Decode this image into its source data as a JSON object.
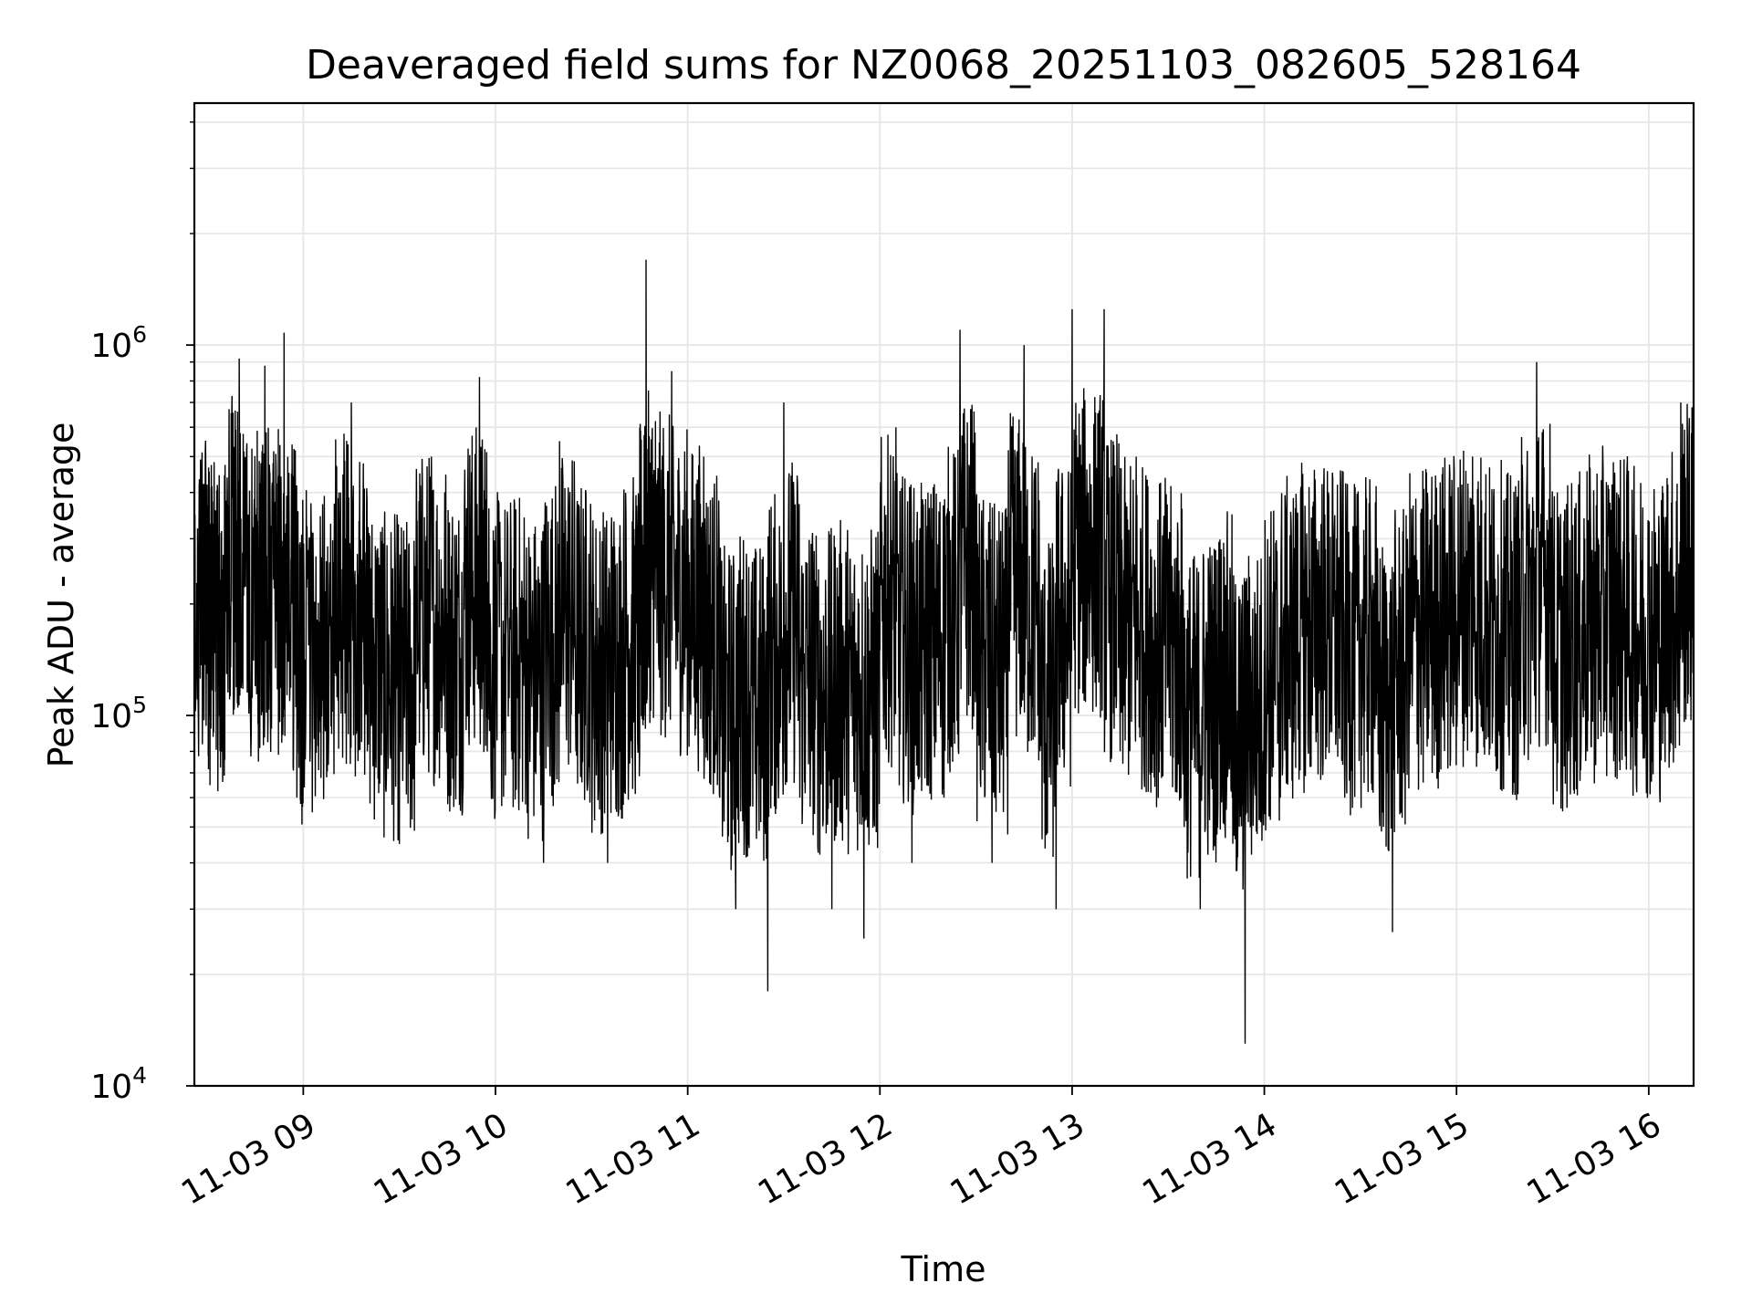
{
  "chart_data": {
    "type": "line",
    "title": "Deaveraged field sums for NZ0068_20251103_082605_528164",
    "xlabel": "Time",
    "ylabel": "Peak ADU - average",
    "yscale": "log",
    "ylim": [
      10000,
      4500000
    ],
    "xlim": [
      "2025-11-03 08:26",
      "2025-11-03 16:14"
    ],
    "x_ticks": [
      {
        "value": "2025-11-03 09:00",
        "label": "11-03 09"
      },
      {
        "value": "2025-11-03 10:00",
        "label": "11-03 10"
      },
      {
        "value": "2025-11-03 11:00",
        "label": "11-03 11"
      },
      {
        "value": "2025-11-03 12:00",
        "label": "11-03 12"
      },
      {
        "value": "2025-11-03 13:00",
        "label": "11-03 13"
      },
      {
        "value": "2025-11-03 14:00",
        "label": "11-03 14"
      },
      {
        "value": "2025-11-03 15:00",
        "label": "11-03 15"
      },
      {
        "value": "2025-11-03 16:00",
        "label": "11-03 16"
      }
    ],
    "y_ticks": [
      {
        "value": 10000,
        "base": "10",
        "exp": "4"
      },
      {
        "value": 100000,
        "base": "10",
        "exp": "5"
      },
      {
        "value": 1000000,
        "base": "10",
        "exp": "6"
      }
    ],
    "grid": true,
    "line_color": "#000000",
    "grid_color": "#e6e6e6",
    "series": [
      {
        "values": [
          [
            "2025-11-03 08:26",
            180000
          ],
          [
            "2025-11-03 08:30",
            420000
          ],
          [
            "2025-11-03 08:32",
            90000
          ],
          [
            "2025-11-03 08:36",
            380000
          ],
          [
            "2025-11-03 08:40",
            920000
          ],
          [
            "2025-11-03 08:45",
            120000
          ],
          [
            "2025-11-03 08:48",
            880000
          ],
          [
            "2025-11-03 08:52",
            130000
          ],
          [
            "2025-11-03 08:54",
            1080000
          ],
          [
            "2025-11-03 08:58",
            60000
          ],
          [
            "2025-11-03 09:00",
            150000
          ],
          [
            "2025-11-03 09:05",
            90000
          ],
          [
            "2025-11-03 09:10",
            130000
          ],
          [
            "2025-11-03 09:15",
            700000
          ],
          [
            "2025-11-03 09:20",
            80000
          ],
          [
            "2025-11-03 09:25",
            130000
          ],
          [
            "2025-11-03 09:30",
            45000
          ],
          [
            "2025-11-03 09:35",
            110000
          ],
          [
            "2025-11-03 09:40",
            500000
          ],
          [
            "2025-11-03 09:45",
            90000
          ],
          [
            "2025-11-03 09:50",
            180000
          ],
          [
            "2025-11-03 09:55",
            820000
          ],
          [
            "2025-11-03 09:58",
            150000
          ],
          [
            "2025-11-03 10:05",
            80000
          ],
          [
            "2025-11-03 10:10",
            160000
          ],
          [
            "2025-11-03 10:15",
            40000
          ],
          [
            "2025-11-03 10:20",
            550000
          ],
          [
            "2025-11-03 10:25",
            100000
          ],
          [
            "2025-11-03 10:30",
            200000
          ],
          [
            "2025-11-03 10:35",
            40000
          ],
          [
            "2025-11-03 10:40",
            300000
          ],
          [
            "2025-11-03 10:45",
            80000
          ],
          [
            "2025-11-03 10:47",
            1700000
          ],
          [
            "2025-11-03 10:50",
            250000
          ],
          [
            "2025-11-03 10:55",
            850000
          ],
          [
            "2025-11-03 11:00",
            150000
          ],
          [
            "2025-11-03 11:05",
            500000
          ],
          [
            "2025-11-03 11:10",
            60000
          ],
          [
            "2025-11-03 11:15",
            30000
          ],
          [
            "2025-11-03 11:20",
            120000
          ],
          [
            "2025-11-03 11:25",
            18000
          ],
          [
            "2025-11-03 11:30",
            700000
          ],
          [
            "2025-11-03 11:35",
            60000
          ],
          [
            "2025-11-03 11:40",
            110000
          ],
          [
            "2025-11-03 11:45",
            30000
          ],
          [
            "2025-11-03 11:50",
            160000
          ],
          [
            "2025-11-03 11:55",
            25000
          ],
          [
            "2025-11-03 12:00",
            150000
          ],
          [
            "2025-11-03 12:05",
            600000
          ],
          [
            "2025-11-03 12:10",
            40000
          ],
          [
            "2025-11-03 12:15",
            400000
          ],
          [
            "2025-11-03 12:20",
            60000
          ],
          [
            "2025-11-03 12:25",
            1100000
          ],
          [
            "2025-11-03 12:30",
            300000
          ],
          [
            "2025-11-03 12:35",
            40000
          ],
          [
            "2025-11-03 12:40",
            200000
          ],
          [
            "2025-11-03 12:45",
            1000000
          ],
          [
            "2025-11-03 12:50",
            80000
          ],
          [
            "2025-11-03 12:55",
            30000
          ],
          [
            "2025-11-03 13:00",
            1250000
          ],
          [
            "2025-11-03 13:05",
            400000
          ],
          [
            "2025-11-03 13:10",
            1250000
          ],
          [
            "2025-11-03 13:15",
            80000
          ],
          [
            "2025-11-03 13:20",
            500000
          ],
          [
            "2025-11-03 13:25",
            70000
          ],
          [
            "2025-11-03 13:30",
            300000
          ],
          [
            "2025-11-03 13:35",
            50000
          ],
          [
            "2025-11-03 13:40",
            30000
          ],
          [
            "2025-11-03 13:45",
            100000
          ],
          [
            "2025-11-03 13:50",
            60000
          ],
          [
            "2025-11-03 13:54",
            13000
          ],
          [
            "2025-11-03 14:00",
            150000
          ],
          [
            "2025-11-03 14:05",
            60000
          ],
          [
            "2025-11-03 14:10",
            350000
          ],
          [
            "2025-11-03 14:15",
            100000
          ],
          [
            "2025-11-03 14:20",
            400000
          ],
          [
            "2025-11-03 14:25",
            80000
          ],
          [
            "2025-11-03 14:30",
            200000
          ],
          [
            "2025-11-03 14:35",
            100000
          ],
          [
            "2025-11-03 14:40",
            26000
          ],
          [
            "2025-11-03 14:45",
            250000
          ],
          [
            "2025-11-03 14:50",
            120000
          ],
          [
            "2025-11-03 14:55",
            300000
          ],
          [
            "2025-11-03 15:00",
            180000
          ],
          [
            "2025-11-03 15:05",
            500000
          ],
          [
            "2025-11-03 15:10",
            150000
          ],
          [
            "2025-11-03 15:15",
            250000
          ],
          [
            "2025-11-03 15:20",
            100000
          ],
          [
            "2025-11-03 15:25",
            900000
          ],
          [
            "2025-11-03 15:30",
            200000
          ],
          [
            "2025-11-03 15:35",
            80000
          ],
          [
            "2025-11-03 15:40",
            300000
          ],
          [
            "2025-11-03 15:45",
            150000
          ],
          [
            "2025-11-03 15:50",
            400000
          ],
          [
            "2025-11-03 15:55",
            120000
          ],
          [
            "2025-11-03 16:00",
            250000
          ],
          [
            "2025-11-03 16:05",
            100000
          ],
          [
            "2025-11-03 16:10",
            700000
          ],
          [
            "2025-11-03 16:14",
            450000
          ]
        ]
      }
    ]
  }
}
